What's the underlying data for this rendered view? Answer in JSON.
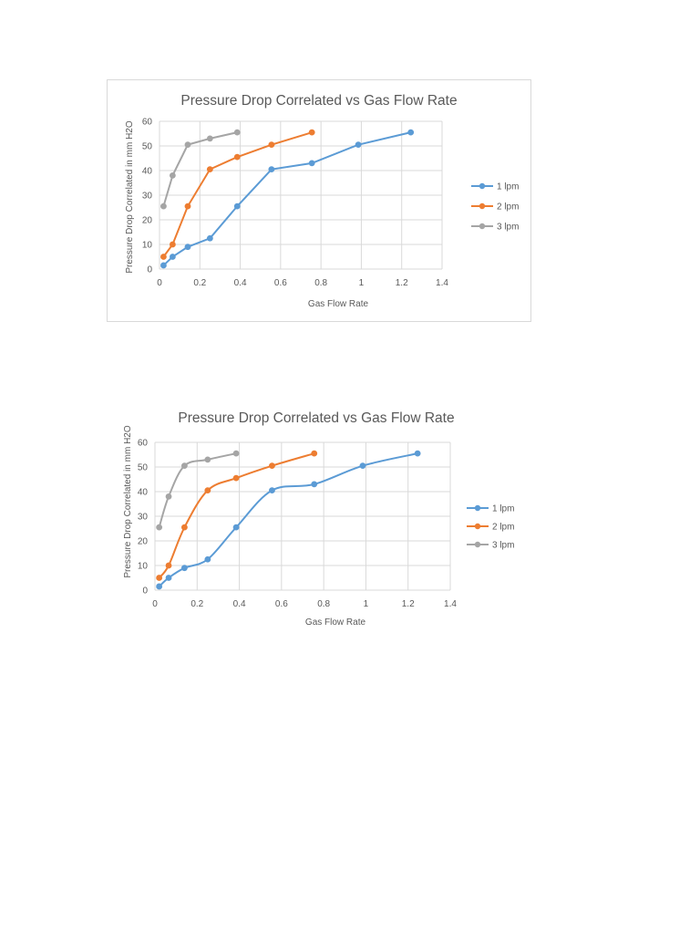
{
  "chart_data": [
    {
      "type": "line",
      "title": "Pressure Drop Correlated vs Gas Flow Rate",
      "xlabel": "Gas Flow Rate",
      "ylabel": "Pressure Drop Correlated in mm H2O",
      "xlim": [
        0,
        1.4
      ],
      "ylim": [
        0,
        60
      ],
      "xticks": [
        "0",
        "0.2",
        "0.4",
        "0.6",
        "0.8",
        "1",
        "1.2",
        "1.4"
      ],
      "yticks": [
        "0",
        "10",
        "20",
        "30",
        "40",
        "50",
        "60"
      ],
      "grid": true,
      "legend": "right",
      "smooth": false,
      "series": [
        {
          "name": "1 lpm",
          "color": "#5b9bd5",
          "x": [
            0.02,
            0.065,
            0.14,
            0.25,
            0.385,
            0.555,
            0.755,
            0.985,
            1.245
          ],
          "y": [
            1.5,
            5,
            9,
            12.5,
            25.5,
            40.5,
            43,
            50.5,
            55.5
          ]
        },
        {
          "name": "2 lpm",
          "color": "#ed7d31",
          "x": [
            0.02,
            0.065,
            0.14,
            0.25,
            0.385,
            0.555,
            0.755
          ],
          "y": [
            5,
            10,
            25.5,
            40.5,
            45.5,
            50.5,
            55.5
          ]
        },
        {
          "name": "3 lpm",
          "color": "#a5a5a5",
          "x": [
            0.02,
            0.065,
            0.14,
            0.25,
            0.385
          ],
          "y": [
            25.5,
            38,
            50.5,
            53,
            55.5
          ]
        }
      ]
    },
    {
      "type": "line",
      "title": "Pressure Drop Correlated vs Gas Flow Rate",
      "xlabel": "Gas Flow Rate",
      "ylabel": "Pressure Drop Correlated in mm H2O",
      "xlim": [
        0,
        1.4
      ],
      "ylim": [
        0,
        60
      ],
      "xticks": [
        "0",
        "0.2",
        "0.4",
        "0.6",
        "0.8",
        "1",
        "1.2",
        "1.4"
      ],
      "yticks": [
        "0",
        "10",
        "20",
        "30",
        "40",
        "50",
        "60"
      ],
      "grid": true,
      "legend": "right",
      "smooth": true,
      "series": [
        {
          "name": "1 lpm",
          "color": "#5b9bd5",
          "x": [
            0.02,
            0.065,
            0.14,
            0.25,
            0.385,
            0.555,
            0.755,
            0.985,
            1.245
          ],
          "y": [
            1.5,
            5,
            9,
            12.5,
            25.5,
            40.5,
            43,
            50.5,
            55.5
          ]
        },
        {
          "name": "2 lpm",
          "color": "#ed7d31",
          "x": [
            0.02,
            0.065,
            0.14,
            0.25,
            0.385,
            0.555,
            0.755
          ],
          "y": [
            5,
            10,
            25.5,
            40.5,
            45.5,
            50.5,
            55.5
          ]
        },
        {
          "name": "3 lpm",
          "color": "#a5a5a5",
          "x": [
            0.02,
            0.065,
            0.14,
            0.25,
            0.385
          ],
          "y": [
            25.5,
            38,
            50.5,
            53,
            55.5
          ]
        }
      ]
    }
  ]
}
